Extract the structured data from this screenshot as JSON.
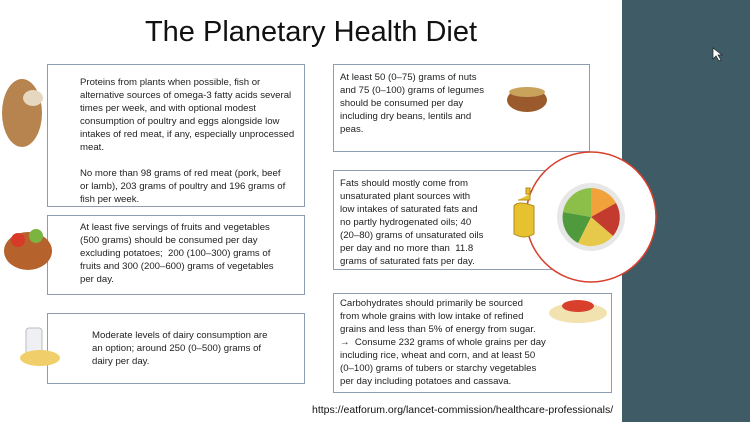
{
  "header": {
    "title": "The Planetary Health Diet"
  },
  "boxes": [
    {
      "paragraphs": [
        {
          "lines": [
            "Proteins from plants when possible, fish or",
            "alternative sources of omega-3 fatty acids several",
            "times per week, and with optional modest",
            "consumption of poultry and eggs alongside low",
            "intakes of red meat, if any, especially unprocessed",
            "meat."
          ]
        },
        {
          "lines": [
            "No more than 98 grams of red meat (pork, beef",
            "or lamb), 203 grams of poultry and 196 grams of",
            "fish per week."
          ]
        }
      ]
    },
    {
      "paragraphs": [
        {
          "lines": [
            "At least five servings of fruits and vegetables",
            "(500 grams) should be consumed per day",
            "excluding potatoes;  200 (100–300) grams of",
            "fruits and 300 (200–600) grams of vegetables",
            "per day."
          ]
        }
      ]
    },
    {
      "paragraphs": [
        {
          "lines": [
            "Moderate levels of dairy consumption are",
            "an option; around 250 (0–500) grams of",
            "dairy per day."
          ]
        }
      ]
    },
    {
      "paragraphs": [
        {
          "lines": [
            "At least 50 (0–75) grams of nuts",
            "and 75 (0–100) grams of legumes",
            "should be consumed per day",
            "including dry beans, lentils and",
            "peas."
          ]
        }
      ]
    },
    {
      "paragraphs": [
        {
          "lines": [
            "Fats should mostly come from",
            "unsaturated plant sources with",
            "low intakes of saturated fats and",
            "no partly hydrogenated oils; 40",
            "(20–80) grams of unsaturated oils",
            "per day and no more than  11.8",
            "grams of saturated fats per day."
          ]
        }
      ]
    },
    {
      "paragraphs": [
        {
          "lines": [
            "Carbohydrates should primarily be sourced",
            "from whole grains with low intake of refined",
            "grains and less than 5% of energy from sugar.",
            "→  Consume 232 grams of whole grains per day",
            "including rice, wheat and corn, and at least 50",
            "(0–100) grams of tubers or starchy vegetables",
            "per day including potatoes and cassava."
          ]
        }
      ]
    }
  ],
  "footer": {
    "url": "https://eatforum.org/lancet-commission/healthcare-professionals/"
  }
}
